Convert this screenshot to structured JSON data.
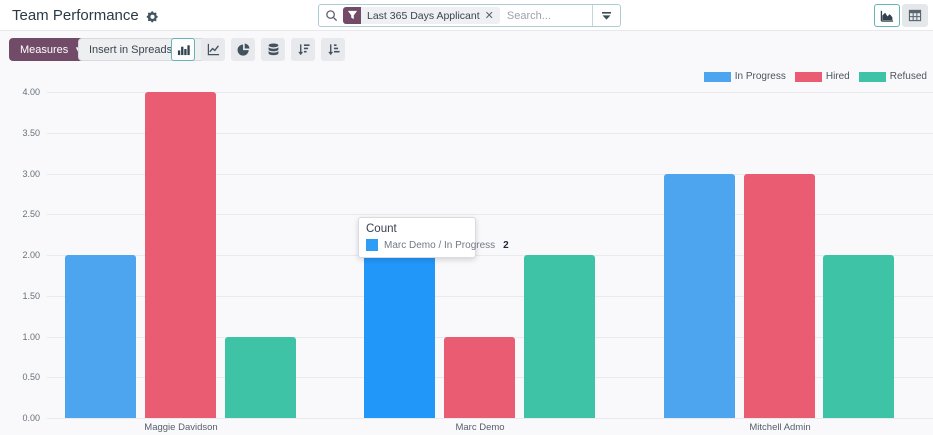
{
  "header": {
    "title": "Team Performance",
    "icons": [
      "gear-icon",
      "search-icon",
      "filter-funnel-icon",
      "facet-close-icon",
      "search-dropdown-caret-icon",
      "area-chart-view-icon",
      "pivot-view-icon"
    ],
    "search": {
      "facet_label": "Last 365 Days Applicant",
      "placeholder": "Search..."
    }
  },
  "toolbar": {
    "measures_label": "Measures",
    "insert_label": "Insert in Spreadsheet",
    "icons": [
      "bar-chart-icon",
      "line-chart-icon",
      "pie-chart-icon",
      "stacked-icon",
      "sort-descending-icon",
      "sort-ascending-icon"
    ],
    "active_chart_type": "bar"
  },
  "colors": {
    "accent_purple": "#714b67",
    "active_border_teal": "#69b2b6",
    "in_progress": "#4da4ef",
    "in_progress_hover": "#2297fa",
    "hired": "#ea5c72",
    "refused": "#3ec3a7",
    "grid": "#e9eaee"
  },
  "tooltip": {
    "title": "Count",
    "label": "Marc Demo / In Progress",
    "value": "2",
    "swatch_color": "#2e9df5"
  },
  "chart_data": {
    "type": "bar",
    "title": "",
    "measure": "Count",
    "categories": [
      "Maggie Davidson",
      "Marc Demo",
      "Mitchell Admin"
    ],
    "series": [
      {
        "name": "In Progress",
        "color": "#4da4ef",
        "values": [
          2,
          2,
          3
        ]
      },
      {
        "name": "Hired",
        "color": "#ea5c72",
        "values": [
          4,
          1,
          3
        ]
      },
      {
        "name": "Refused",
        "color": "#3ec3a7",
        "values": [
          1,
          2,
          2
        ]
      }
    ],
    "ylim": [
      0,
      4
    ],
    "ytick_step": 0.5,
    "ytick_labels": [
      "0.00",
      "0.50",
      "1.00",
      "1.50",
      "2.00",
      "2.50",
      "3.00",
      "3.50",
      "4.00"
    ],
    "grid": "horizontal",
    "legend_position": "top-right",
    "highlighted": {
      "category_index": 1,
      "series_index": 0,
      "color": "#2297fa"
    }
  }
}
